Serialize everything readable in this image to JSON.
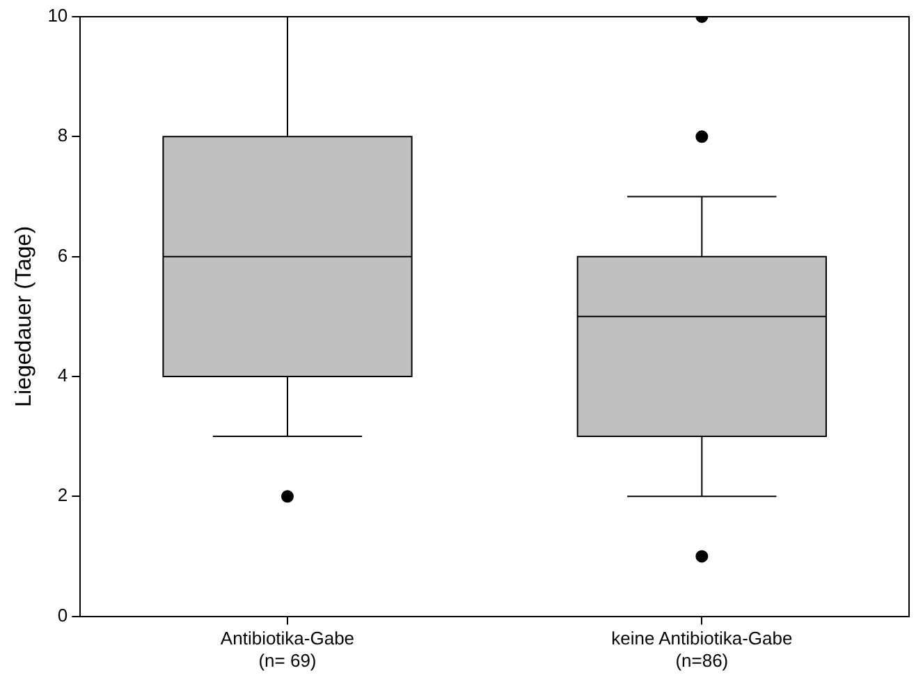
{
  "chart_data": {
    "type": "box",
    "ylabel": "Liegedauer (Tage)",
    "categories": [
      "Antibiotika-Gabe\n(n= 69)",
      "keine Antibiotika-Gabe\n(n=86)"
    ],
    "color": "#c0c0c0",
    "boxes": [
      {
        "low": 3,
        "q1": 4,
        "median": 6,
        "q3": 8,
        "high": 10,
        "outliers": [
          2
        ]
      },
      {
        "low": 2,
        "q1": 3,
        "median": 5,
        "q3": 6,
        "high": 7,
        "outliers": [
          1,
          8,
          10
        ]
      }
    ],
    "ylim": [
      0,
      10
    ],
    "yticks": [
      0,
      2,
      4,
      6,
      8,
      10
    ],
    "grid": false,
    "legend": false
  }
}
